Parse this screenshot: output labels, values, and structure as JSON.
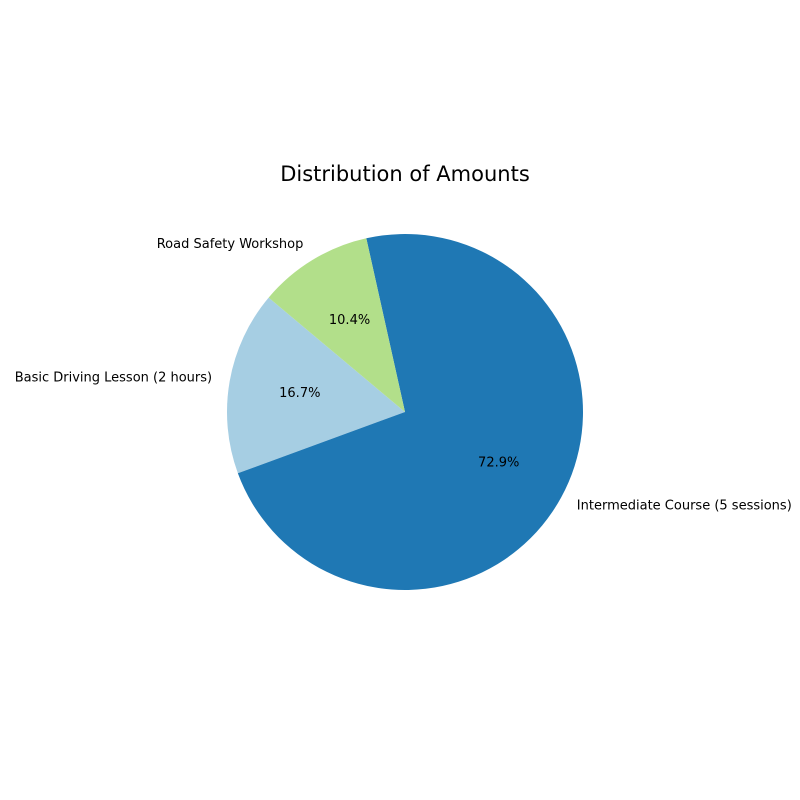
{
  "chart_data": {
    "type": "pie",
    "title": "Distribution of Amounts",
    "categories": [
      "Basic Driving Lesson (2 hours)",
      "Intermediate Course (5 sessions)",
      "Road Safety Workshop"
    ],
    "values": [
      16.7,
      72.9,
      10.4
    ],
    "percent_labels": [
      "16.7%",
      "72.9%",
      "10.4%"
    ],
    "colors": [
      "#a6cee3",
      "#1f78b4",
      "#b2df8a"
    ],
    "start_angle_deg": 140,
    "direction": "counterclockwise",
    "legend": "none"
  }
}
